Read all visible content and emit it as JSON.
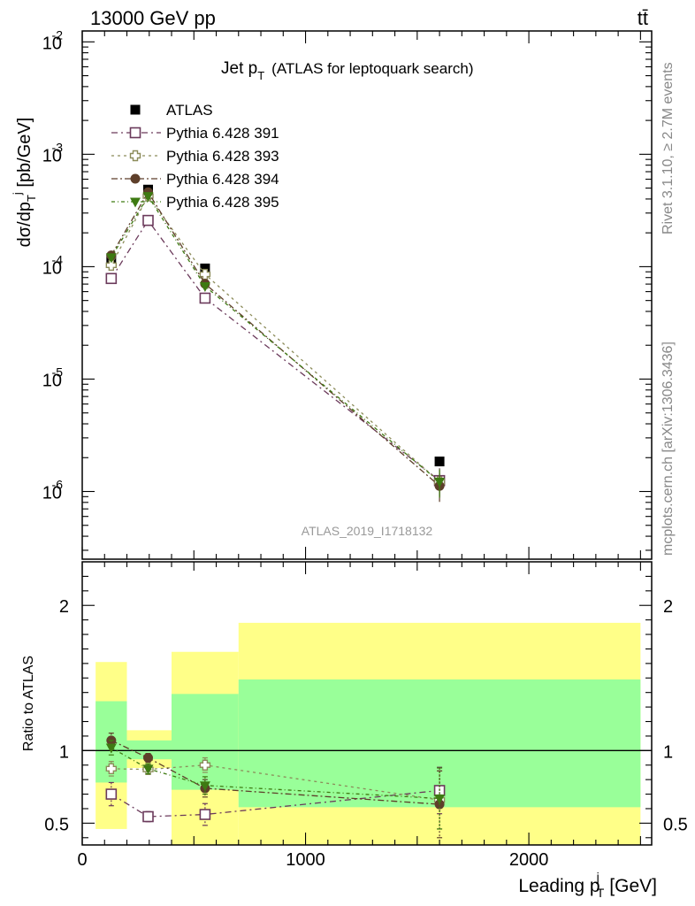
{
  "header": {
    "left": "13000 GeV pp",
    "right": "tt̄"
  },
  "side_labels": {
    "rivet": "Rivet 3.1.10, ≥ 2.7M events",
    "mcplots": "mcplots.cern.ch [arXiv:1306.3436]"
  },
  "watermark": "ATLAS_2019_I1718132",
  "colors": {
    "atlas": "#000000",
    "p391": "#6b3a5b",
    "p393": "#8c8c5a",
    "p394": "#5e3f2a",
    "p395": "#3e7a12",
    "band_inner": "#99ff99",
    "band_outer": "#ffff88"
  },
  "chart_data": [
    {
      "type": "line",
      "title": "Jet p_T (ATLAS for leptoquark search)",
      "title_main": "Jet p",
      "title_sub": "T",
      "title_rest": "(ATLAS for leptoquark search)",
      "ylabel": "dσ/dp_T^j [pb/GeV]",
      "y_scale": "log",
      "ylim": [
        2.5e-07,
        0.0125
      ],
      "xlim": [
        0,
        2550
      ],
      "y_tick_labels": [
        "10^-6",
        "10^-5",
        "10^-4",
        "10^-3",
        "10^-2"
      ],
      "legend_position": "top-left",
      "x": [
        130,
        295,
        550,
        1600
      ],
      "x_edges": [
        [
          60,
          200
        ],
        [
          200,
          400
        ],
        [
          400,
          700
        ],
        [
          700,
          2500
        ]
      ],
      "series": [
        {
          "name": "ATLAS",
          "marker": "filled-square",
          "values": [
            0.000118,
            0.000485,
            9.65e-05,
            1.85e-06
          ]
        },
        {
          "name": "Pythia 6.428 391",
          "marker": "open-square",
          "values": [
            7.85e-05,
            0.000258,
            5.25e-05,
            1.25e-06
          ]
        },
        {
          "name": "Pythia 6.428 393",
          "marker": "open-cross",
          "values": [
            0.000103,
            0.000425,
            8.55e-05,
            1.22e-06
          ]
        },
        {
          "name": "Pythia 6.428 394",
          "marker": "filled-circle",
          "values": [
            0.000126,
            0.00046,
            7.05e-05,
            1.12e-06
          ]
        },
        {
          "name": "Pythia 6.428 395",
          "marker": "filled-triangle-down",
          "values": [
            0.000121,
            0.000425,
            6.7e-05,
            1.22e-06
          ]
        }
      ]
    },
    {
      "type": "line",
      "ylabel": "Ratio to ATLAS",
      "xlabel": "Leading p_T^j [GeV]",
      "xlabel_main": "Leading p",
      "xlabel_sup": "j",
      "xlabel_sub": "T",
      "xlabel_rest": "[GeV]",
      "ylim": [
        0.35,
        2.3
      ],
      "xlim": [
        0,
        2550
      ],
      "x_ticks": [
        0,
        1000,
        2000
      ],
      "x_tick_labels": [
        "0",
        "1000",
        "2000"
      ],
      "y_ticks": [
        0.5,
        1,
        2
      ],
      "y_tick_labels": [
        "0.5",
        "1",
        "2"
      ],
      "bands": [
        {
          "x0": 60,
          "x1": 200,
          "inner": [
            0.78,
            1.34
          ],
          "outer": [
            0.46,
            1.61
          ]
        },
        {
          "x0": 200,
          "x1": 400,
          "inner": [
            0.94,
            1.07
          ],
          "outer": [
            0.88,
            1.14
          ]
        },
        {
          "x0": 400,
          "x1": 700,
          "inner": [
            0.73,
            1.39
          ],
          "outer": [
            0.35,
            1.68
          ]
        },
        {
          "x0": 700,
          "x1": 2500,
          "inner": [
            0.61,
            1.49
          ],
          "outer": [
            0.35,
            1.88
          ]
        }
      ],
      "x": [
        130,
        295,
        550,
        1600
      ],
      "series": [
        {
          "name": "Pythia 6.428 391",
          "values": [
            0.7,
            0.545,
            0.56,
            0.725
          ],
          "errors": [
            0.08,
            0.035,
            0.075,
            0.16
          ]
        },
        {
          "name": "Pythia 6.428 393",
          "values": [
            0.875,
            0.87,
            0.9,
            0.66
          ],
          "errors": [
            0.05,
            0.035,
            0.05,
            0.2
          ]
        },
        {
          "name": "Pythia 6.428 394",
          "values": [
            1.07,
            0.95,
            0.74,
            0.63
          ],
          "errors": [
            0.05,
            0.03,
            0.06,
            0.23
          ]
        },
        {
          "name": "Pythia 6.428 395",
          "values": [
            1.02,
            0.875,
            0.76,
            0.67
          ],
          "errors": [
            0.05,
            0.035,
            0.06,
            0.21
          ]
        }
      ]
    }
  ]
}
